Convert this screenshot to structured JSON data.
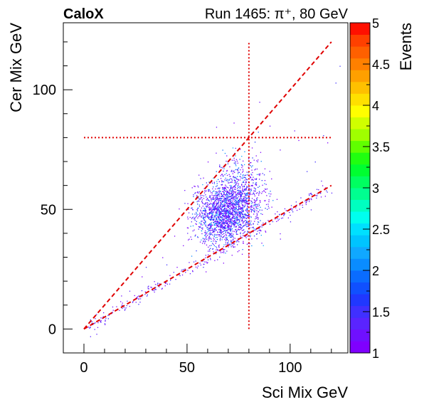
{
  "chart_data": {
    "type": "scatter",
    "label_left": "CaloX",
    "label_right": "Run 1465: π⁺, 80 GeV",
    "xlabel": "Sci Mix GeV",
    "ylabel": "Cer Mix GeV",
    "xlim": [
      -10,
      128
    ],
    "ylim": [
      -10,
      128
    ],
    "x_ticks": [
      0,
      50,
      100
    ],
    "y_ticks": [
      0,
      50,
      100
    ],
    "grid": false,
    "colorbar": {
      "label": "Events",
      "range": [
        1,
        5
      ],
      "tick_labels": [
        "1",
        "1.5",
        "2",
        "2.5",
        "3",
        "3.5",
        "4",
        "4.5",
        "5"
      ],
      "tick_values": [
        1,
        1.5,
        2,
        2.5,
        3,
        3.5,
        4,
        4.5,
        5
      ],
      "palette": [
        "#7f00ff",
        "#6f10ff",
        "#5a24ff",
        "#4030ff",
        "#2038ff",
        "#1050ff",
        "#0a6cff",
        "#0a8cff",
        "#10a8ff",
        "#00c4ff",
        "#00e0ff",
        "#00ffee",
        "#00ffc0",
        "#00ff90",
        "#00ff60",
        "#00ff30",
        "#20ff10",
        "#60ff00",
        "#a0ff00",
        "#d0ff00",
        "#ffff00",
        "#ffe000",
        "#ffc000",
        "#ffa000",
        "#ff8000",
        "#ff6000",
        "#ff4000",
        "#ff1000"
      ]
    },
    "reference_lines": [
      {
        "name": "cer-equals-sci",
        "style": "dashed",
        "x": [
          0,
          120
        ],
        "y": [
          0,
          120
        ]
      },
      {
        "name": "cer-half-sci",
        "style": "dashed",
        "x": [
          0,
          120
        ],
        "y": [
          0,
          60
        ]
      },
      {
        "name": "beam-energy-vertical",
        "style": "dotted",
        "x": [
          80,
          80
        ],
        "y": [
          0,
          120
        ]
      },
      {
        "name": "beam-energy-horizontal",
        "style": "dotted",
        "x": [
          0,
          120
        ],
        "y": [
          80,
          80
        ]
      }
    ],
    "event_clusters": [
      {
        "center": [
          67,
          48
        ],
        "spread": [
          7,
          6
        ],
        "count": 1600
      },
      {
        "center": [
          76,
          56
        ],
        "spread": [
          6,
          8
        ],
        "count": 700
      }
    ],
    "events_along_half_line": {
      "x_range": [
        2,
        118
      ],
      "count": 260
    },
    "outlier_events": [
      [
        2,
        1
      ],
      [
        4,
        2
      ],
      [
        5,
        0
      ],
      [
        3,
        4
      ],
      [
        8,
        3
      ],
      [
        12,
        6
      ],
      [
        6,
        -2
      ],
      [
        3,
        -3
      ],
      [
        10,
        2
      ],
      [
        14,
        8
      ],
      [
        18,
        14
      ],
      [
        22,
        16
      ],
      [
        28,
        22
      ],
      [
        30,
        26
      ],
      [
        34,
        20
      ],
      [
        38,
        30
      ],
      [
        40,
        27
      ],
      [
        45,
        26
      ],
      [
        48,
        35
      ],
      [
        52,
        45
      ],
      [
        95,
        40
      ],
      [
        97,
        48
      ],
      [
        100,
        45
      ],
      [
        105,
        55
      ],
      [
        110,
        50
      ],
      [
        108,
        66
      ],
      [
        112,
        70
      ],
      [
        115,
        62
      ],
      [
        118,
        78
      ],
      [
        102,
        83
      ],
      [
        104,
        79
      ],
      [
        116,
        81
      ],
      [
        122,
        103
      ],
      [
        90,
        85
      ],
      [
        95,
        75
      ],
      [
        85,
        95
      ],
      [
        60,
        70
      ],
      [
        55,
        60
      ],
      [
        120,
        57
      ],
      [
        124,
        110
      ]
    ]
  }
}
